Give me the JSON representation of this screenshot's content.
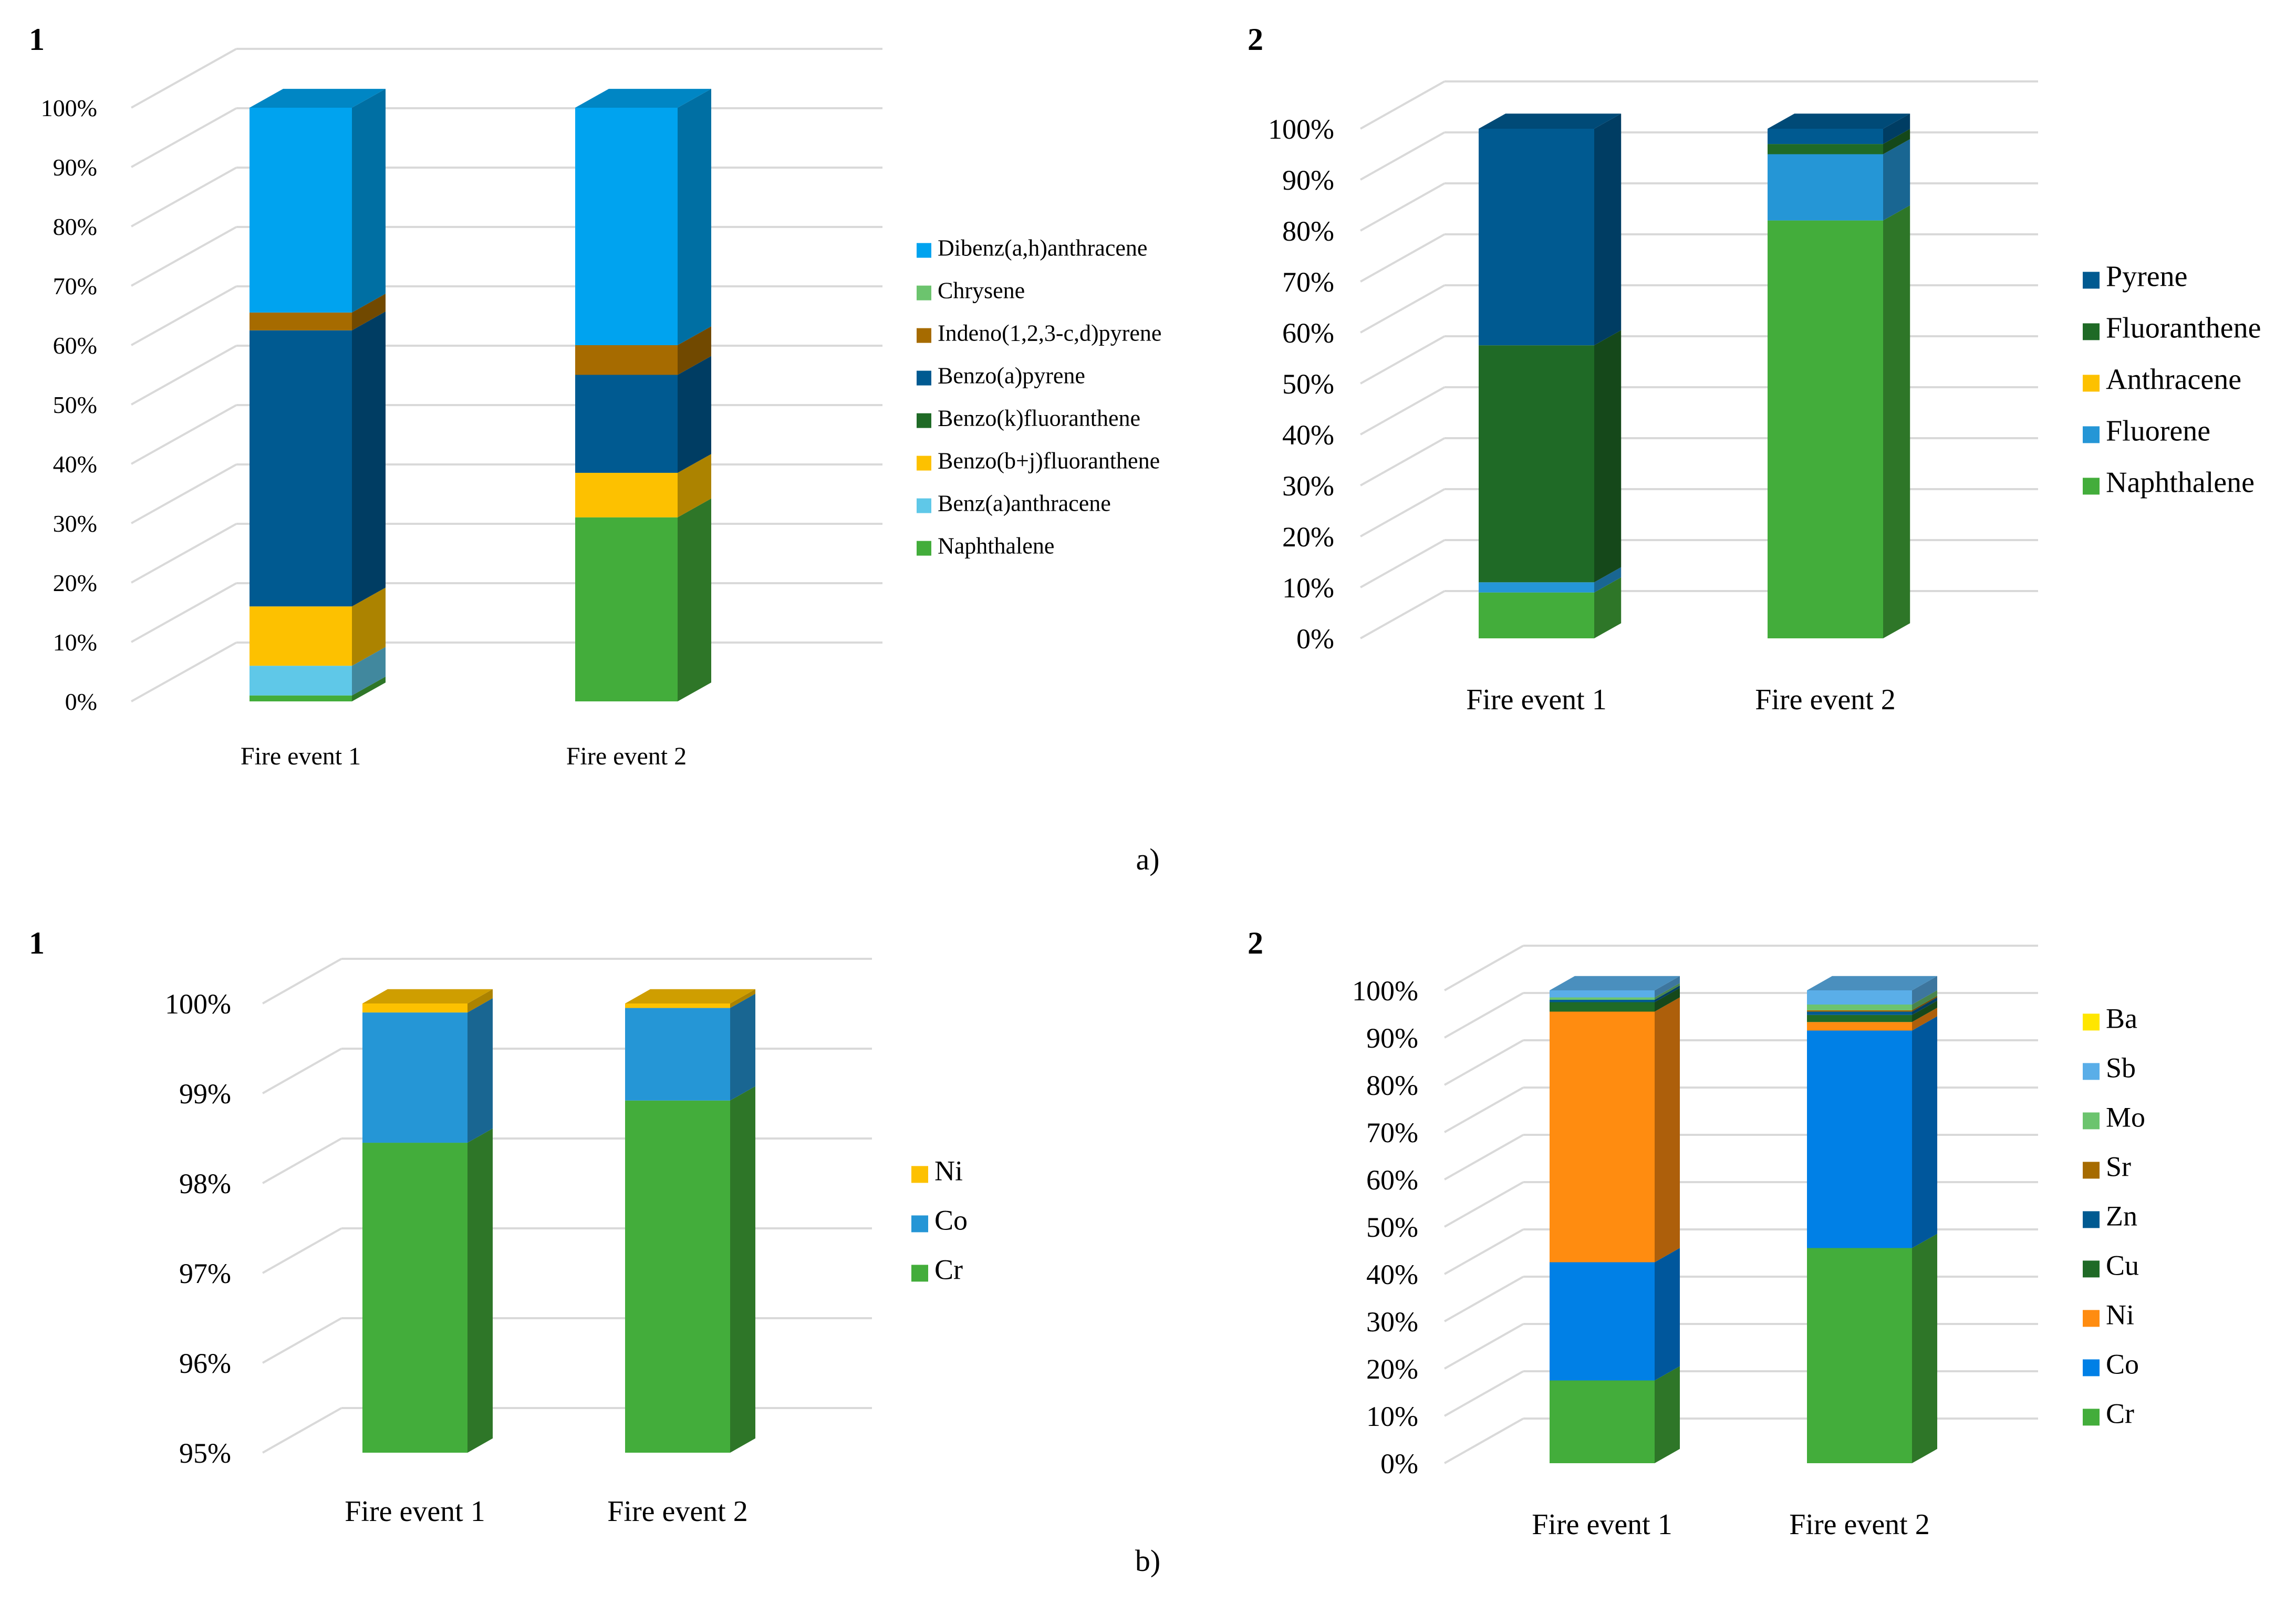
{
  "figure": {
    "caption_a": "a)",
    "caption_b": "b)"
  },
  "chart_data": [
    {
      "panel_label": "1",
      "type": "stacked-bar-100-3d",
      "categories": [
        "Fire event 1",
        "Fire event 2"
      ],
      "ylim": [
        0,
        100
      ],
      "yticks": [
        "0%",
        "10%",
        "20%",
        "30%",
        "40%",
        "50%",
        "60%",
        "70%",
        "80%",
        "90%",
        "100%"
      ],
      "legend_position": "right",
      "series": [
        {
          "name": "Naphthalene",
          "values": [
            1,
            31
          ],
          "color": "#43ad3b"
        },
        {
          "name": "Benz(a)anthracene",
          "values": [
            5,
            0
          ],
          "color": "#5fc8e8"
        },
        {
          "name": "Benzo(b+j)fluoranthene",
          "values": [
            10,
            7.5
          ],
          "color": "#fdc100"
        },
        {
          "name": "Benzo(k)fluoranthene",
          "values": [
            0,
            0
          ],
          "color": "#1f6a26"
        },
        {
          "name": "Benzo(a)pyrene",
          "values": [
            46.5,
            16.5
          ],
          "color": "#005a91"
        },
        {
          "name": "Indeno(1,2,3-c,d)pyrene",
          "values": [
            3,
            5
          ],
          "color": "#a66b00"
        },
        {
          "name": "Chrysene",
          "values": [
            0,
            0
          ],
          "color": "#6cc46e"
        },
        {
          "name": "Dibenz(a,h)anthracene",
          "values": [
            34.5,
            40
          ],
          "color": "#00a3ef"
        }
      ]
    },
    {
      "panel_label": "2",
      "type": "stacked-bar-100-3d",
      "categories": [
        "Fire event 1",
        "Fire event 2"
      ],
      "ylim": [
        0,
        100
      ],
      "yticks": [
        "0%",
        "10%",
        "20%",
        "30%",
        "40%",
        "50%",
        "60%",
        "70%",
        "80%",
        "90%",
        "100%"
      ],
      "legend_position": "right",
      "series": [
        {
          "name": "Naphthalene",
          "values": [
            9,
            82
          ],
          "color": "#43ad3b"
        },
        {
          "name": "Fluorene",
          "values": [
            2,
            13
          ],
          "color": "#2596d6"
        },
        {
          "name": "Anthracene",
          "values": [
            0,
            0
          ],
          "color": "#fdc100"
        },
        {
          "name": "Fluoranthene",
          "values": [
            46.5,
            2
          ],
          "color": "#1f6a26"
        },
        {
          "name": "Pyrene",
          "values": [
            42.5,
            3
          ],
          "color": "#005a91"
        }
      ]
    },
    {
      "panel_label": "1",
      "type": "stacked-bar-100-3d",
      "categories": [
        "Fire event 1",
        "Fire event 2"
      ],
      "ylim": [
        95,
        100
      ],
      "yticks": [
        "95%",
        "96%",
        "97%",
        "98%",
        "99%",
        "100%"
      ],
      "legend_position": "right",
      "series": [
        {
          "name": "Cr",
          "values": [
            98.45,
            98.92
          ],
          "color": "#43ad3b"
        },
        {
          "name": "Co",
          "values": [
            1.45,
            1.03
          ],
          "color": "#2596d6"
        },
        {
          "name": "Ni",
          "values": [
            0.1,
            0.05
          ],
          "color": "#fdc100"
        }
      ]
    },
    {
      "panel_label": "2",
      "type": "stacked-bar-100-3d",
      "categories": [
        "Fire event 1",
        "Fire event 2"
      ],
      "ylim": [
        0,
        100
      ],
      "yticks": [
        "0%",
        "10%",
        "20%",
        "30%",
        "40%",
        "50%",
        "60%",
        "70%",
        "80%",
        "90%",
        "100%"
      ],
      "legend_position": "right",
      "series": [
        {
          "name": "Cr",
          "values": [
            17.5,
            45.5
          ],
          "color": "#43ad3b"
        },
        {
          "name": "Co",
          "values": [
            25,
            46
          ],
          "color": "#0080e6"
        },
        {
          "name": "Ni",
          "values": [
            53,
            1.8
          ],
          "color": "#ff8c10"
        },
        {
          "name": "Cu",
          "values": [
            2,
            1.5
          ],
          "color": "#1f6a26"
        },
        {
          "name": "Zn",
          "values": [
            0.5,
            0.7
          ],
          "color": "#005a91"
        },
        {
          "name": "Sr",
          "values": [
            0,
            0.3
          ],
          "color": "#a66b00"
        },
        {
          "name": "Mo",
          "values": [
            0.5,
            1.2
          ],
          "color": "#6cc46e"
        },
        {
          "name": "Sb",
          "values": [
            1.5,
            3
          ],
          "color": "#5aaee8"
        },
        {
          "name": "Ba",
          "values": [
            0,
            0
          ],
          "color": "#ffe600"
        }
      ]
    }
  ]
}
